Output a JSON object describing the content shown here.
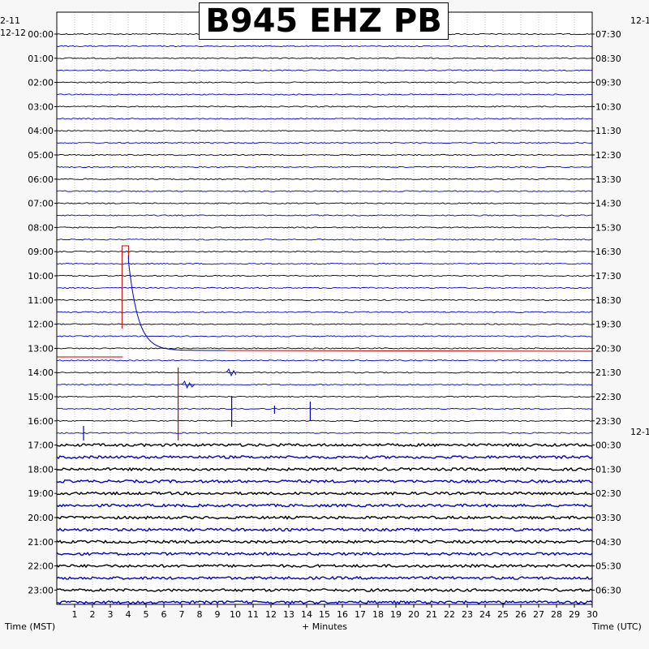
{
  "chart_data": {
    "type": "line",
    "title": "B945 EHZ PB",
    "corner_left_date": "2-11",
    "corner_right_date": "12-1",
    "left_start_date": "12-12",
    "right_mid_date": "12-1",
    "left_labels": [
      "00:00",
      "01:00",
      "02:00",
      "03:00",
      "04:00",
      "05:00",
      "06:00",
      "07:00",
      "08:00",
      "09:00",
      "10:00",
      "11:00",
      "12:00",
      "13:00",
      "14:00",
      "15:00",
      "16:00",
      "17:00",
      "18:00",
      "19:00",
      "20:00",
      "21:00",
      "22:00",
      "23:00"
    ],
    "right_labels": [
      "07:30",
      "08:30",
      "09:30",
      "10:30",
      "11:30",
      "12:30",
      "13:30",
      "14:30",
      "15:30",
      "16:30",
      "17:30",
      "18:30",
      "19:30",
      "20:30",
      "21:30",
      "22:30",
      "23:30",
      "00:30",
      "01:30",
      "02:30",
      "03:30",
      "04:30",
      "05:30",
      "06:30"
    ],
    "x_ticks": [
      "1",
      "2",
      "3",
      "4",
      "5",
      "6",
      "7",
      "8",
      "9",
      "10",
      "11",
      "12",
      "13",
      "14",
      "15",
      "16",
      "17",
      "18",
      "19",
      "20",
      "21",
      "22",
      "23",
      "24",
      "25",
      "26",
      "27",
      "28",
      "29",
      "30"
    ],
    "xlim": [
      0,
      30
    ],
    "xlabel": "+ Minutes",
    "left_axis_label": "Time (MST)",
    "right_axis_label": "Time (UTC)",
    "rows_per_hour": 2,
    "trace_colors": [
      "#0000cc",
      "#000000",
      "#cc0000"
    ],
    "events": [
      {
        "row": 17,
        "minute": 3.7,
        "type": "clip-step"
      },
      {
        "row": 28,
        "minute": 6.8,
        "type": "spike"
      },
      {
        "row": 30,
        "minute": 9.8,
        "type": "spike"
      },
      {
        "row": 30,
        "minute": 14.2,
        "type": "spike"
      }
    ]
  }
}
